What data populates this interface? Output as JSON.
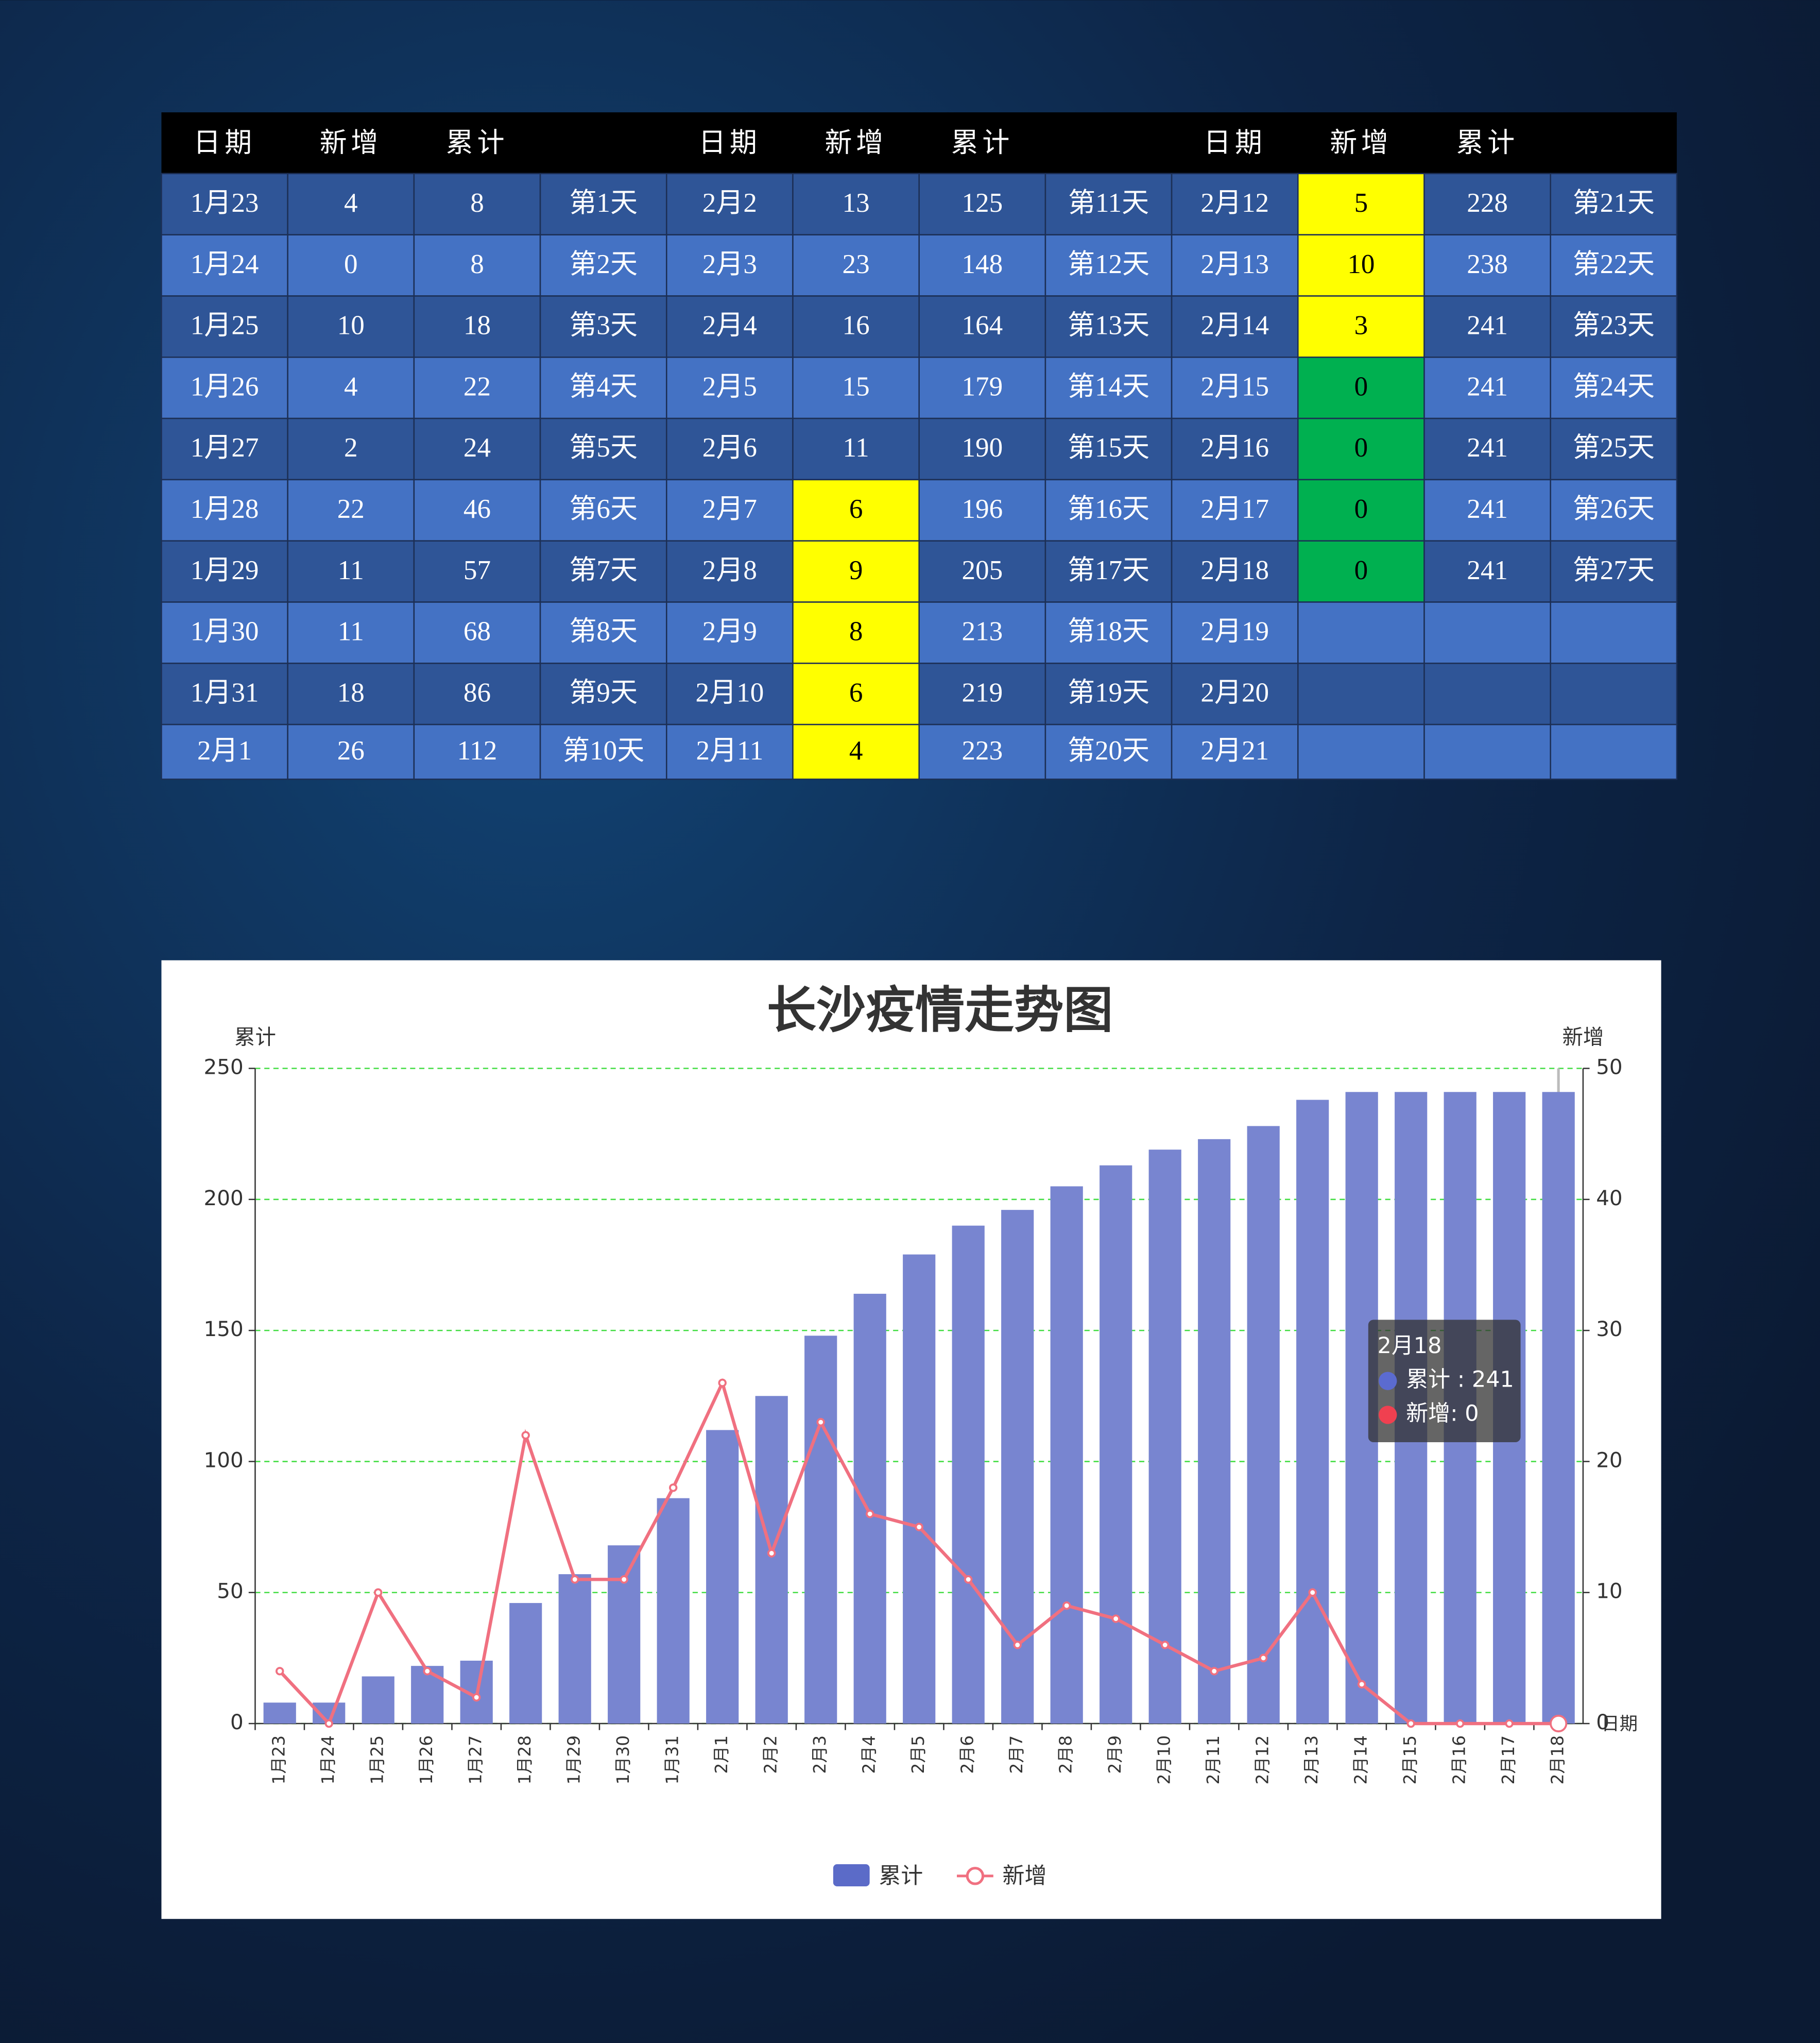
{
  "table": {
    "header": [
      "日期",
      "新增",
      "累计",
      null,
      "日期",
      "新增",
      "累计",
      null,
      "日期",
      "新增",
      "累计",
      null
    ],
    "rows": [
      [
        "1月23",
        "4",
        "8",
        "第1天",
        "2月2",
        "13",
        "125",
        "第11天",
        "2月12",
        {
          "text": "5",
          "fill": "#ffff00"
        },
        "228",
        "第21天"
      ],
      [
        "1月24",
        "0",
        "8",
        "第2天",
        "2月3",
        "23",
        "148",
        "第12天",
        "2月13",
        {
          "text": "10",
          "fill": "#ffff00"
        },
        "238",
        "第22天"
      ],
      [
        "1月25",
        "10",
        "18",
        "第3天",
        "2月4",
        "16",
        "164",
        "第13天",
        "2月14",
        {
          "text": "3",
          "fill": "#ffff00"
        },
        "241",
        "第23天"
      ],
      [
        "1月26",
        "4",
        "22",
        "第4天",
        "2月5",
        "15",
        "179",
        "第14天",
        "2月15",
        {
          "text": "0",
          "fill": "#00b050"
        },
        "241",
        "第24天"
      ],
      [
        "1月27",
        "2",
        "24",
        "第5天",
        "2月6",
        "11",
        "190",
        "第15天",
        "2月16",
        {
          "text": "0",
          "fill": "#00b050"
        },
        "241",
        "第25天"
      ],
      [
        "1月28",
        "22",
        "46",
        "第6天",
        "2月7",
        {
          "text": "6",
          "fill": "#ffff00"
        },
        "196",
        "第16天",
        "2月17",
        {
          "text": "0",
          "fill": "#00b050"
        },
        "241",
        "第26天"
      ],
      [
        "1月29",
        "11",
        "57",
        "第7天",
        "2月8",
        {
          "text": "9",
          "fill": "#ffff00"
        },
        "205",
        "第17天",
        "2月18",
        {
          "text": "0",
          "fill": "#00b050"
        },
        "241",
        "第27天"
      ],
      [
        "1月30",
        "11",
        "68",
        "第8天",
        "2月9",
        {
          "text": "8",
          "fill": "#ffff00"
        },
        "213",
        "第18天",
        "2月19",
        null,
        null,
        null
      ],
      [
        "1月31",
        "18",
        "86",
        "第9天",
        "2月10",
        {
          "text": "6",
          "fill": "#ffff00"
        },
        "219",
        "第19天",
        "2月20",
        null,
        null,
        null
      ],
      [
        "2月1",
        "26",
        "112",
        "第10天",
        "2月11",
        {
          "text": "4",
          "fill": "#ffff00"
        },
        "223",
        "第20天",
        "2月21",
        null,
        null,
        null
      ]
    ]
  },
  "chart_data": {
    "type": "bar-line",
    "title": "长沙疫情走势图",
    "y_label": "累计",
    "y2_label": "新增",
    "x_label": "日期",
    "categories": [
      "1月23",
      "1月24",
      "1月25",
      "1月26",
      "1月27",
      "1月28",
      "1月29",
      "1月30",
      "1月31",
      "2月1",
      "2月2",
      "2月3",
      "2月4",
      "2月5",
      "2月6",
      "2月7",
      "2月8",
      "2月9",
      "2月10",
      "2月11",
      "2月12",
      "2月13",
      "2月14",
      "2月15",
      "2月16",
      "2月17",
      "2月18"
    ],
    "series": [
      {
        "name": "累计",
        "type": "bar",
        "color": "#7885d0",
        "values": [
          8,
          8,
          18,
          22,
          24,
          46,
          57,
          68,
          86,
          112,
          125,
          148,
          164,
          179,
          190,
          196,
          205,
          213,
          219,
          223,
          228,
          238,
          241,
          241,
          241,
          241,
          241
        ]
      },
      {
        "name": "新增",
        "type": "line",
        "axis": "y2",
        "color": "#f07080",
        "values": [
          4,
          0,
          10,
          4,
          2,
          22,
          11,
          11,
          18,
          26,
          13,
          23,
          16,
          15,
          11,
          6,
          9,
          8,
          6,
          4,
          5,
          10,
          3,
          0,
          0,
          0,
          0
        ]
      }
    ],
    "ylim": [
      0,
      250
    ],
    "yticks": [
      0,
      50,
      100,
      150,
      200,
      250
    ],
    "y2lim": [
      0,
      50
    ],
    "y2ticks": [
      0,
      10,
      20,
      30,
      40,
      50
    ],
    "grid": true,
    "tooltip": {
      "title": "2月18",
      "lines": [
        "累计 : 241",
        "新增: 0"
      ]
    }
  }
}
